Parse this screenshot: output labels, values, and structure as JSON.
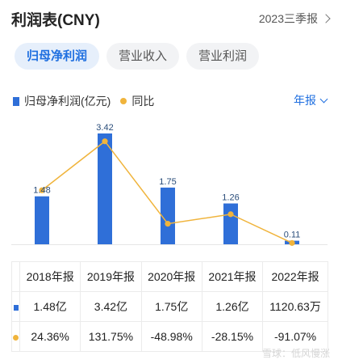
{
  "header": {
    "title": "利润表(CNY)",
    "period": "2023三季报"
  },
  "tabs": [
    {
      "label": "归母净利润",
      "active": true
    },
    {
      "label": "营业收入",
      "active": false
    },
    {
      "label": "营业利润",
      "active": false
    }
  ],
  "legend": {
    "bar_label": "归母净利润(亿元)",
    "line_label": "同比"
  },
  "annual_selector": "年报",
  "colors": {
    "bar": "#2f6fd8",
    "line": "#f0b43c",
    "accent": "#1f6fe0",
    "positive": "#c0392b",
    "negative": "#2e8b57"
  },
  "chart_data": {
    "type": "bar",
    "categories": [
      "2018年报",
      "2019年报",
      "2020年报",
      "2021年报",
      "2022年报"
    ],
    "series": [
      {
        "name": "归母净利润(亿元)",
        "type": "bar",
        "values": [
          1.48,
          3.42,
          1.75,
          1.26,
          0.11
        ],
        "labels": [
          "1.48",
          "3.42",
          "1.75",
          "1.26",
          "0.11"
        ]
      },
      {
        "name": "同比",
        "type": "line",
        "values": [
          24.36,
          131.75,
          -48.98,
          -28.15,
          -91.07
        ]
      }
    ]
  },
  "table": {
    "headers": [
      "2018年报",
      "2019年报",
      "2020年报",
      "2021年报",
      "2022年报"
    ],
    "profit_row": [
      "1.48亿",
      "3.42亿",
      "1.75亿",
      "1.26亿",
      "1120.63万"
    ],
    "yoy_row": [
      "24.36%",
      "131.75%",
      "-48.98%",
      "-28.15%",
      "-91.07%"
    ]
  },
  "watermark": "雪球：低风慢涨"
}
